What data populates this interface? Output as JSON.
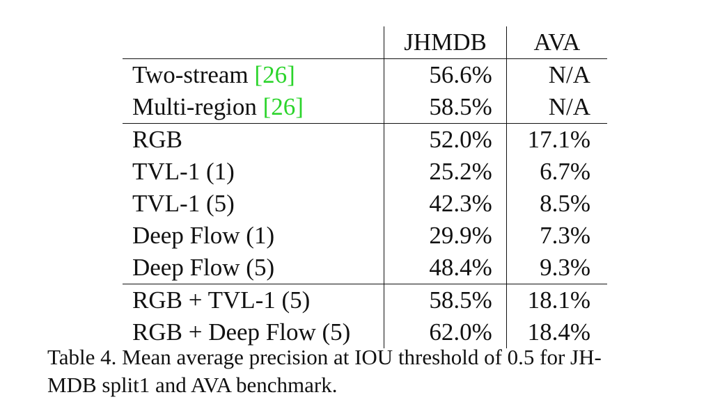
{
  "table": {
    "headers": {
      "method": "",
      "jhmdb": "JHMDB",
      "ava": "AVA"
    },
    "groups": [
      {
        "rows": [
          {
            "method_text": "Two-stream ",
            "citation": "[26]",
            "cite_num": "26",
            "jhmdb": "56.6%",
            "ava": "N/A"
          },
          {
            "method_text": "Multi-region ",
            "citation": "[26]",
            "cite_num": "26",
            "jhmdb": "58.5%",
            "ava": "N/A"
          }
        ]
      },
      {
        "rows": [
          {
            "method_text": "RGB",
            "jhmdb": "52.0%",
            "ava": "17.1%"
          },
          {
            "method_text": "TVL-1 (1)",
            "jhmdb": "25.2%",
            "ava": "6.7%"
          },
          {
            "method_text": "TVL-1 (5)",
            "jhmdb": "42.3%",
            "ava": "8.5%"
          },
          {
            "method_text": "Deep Flow (1)",
            "jhmdb": "29.9%",
            "ava": "7.3%"
          },
          {
            "method_text": "Deep Flow (5)",
            "jhmdb": "48.4%",
            "ava": "9.3%"
          }
        ]
      },
      {
        "rows": [
          {
            "method_text": "RGB + TVL-1 (5)",
            "jhmdb": "58.5%",
            "ava": "18.1%"
          },
          {
            "method_text": "RGB + Deep Flow (5)",
            "jhmdb": "62.0%",
            "ava": "18.4%"
          }
        ]
      }
    ]
  },
  "caption": {
    "line1": "Table 4. Mean average precision at IOU threshold of 0.5 for JH-",
    "line2": "MDB split1 and AVA benchmark."
  },
  "colors": {
    "citation": "#2bd42b",
    "text": "#111111"
  }
}
